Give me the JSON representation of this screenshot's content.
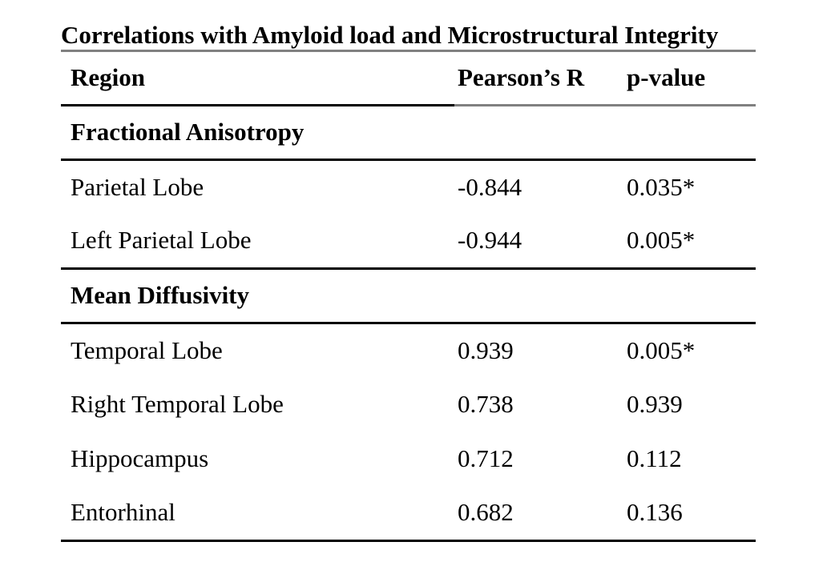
{
  "table": {
    "title": "Correlations with Amyloid load and Microstructural Integrity",
    "columns": [
      "Region",
      "Pearson’s R",
      "p-value"
    ],
    "sections": [
      {
        "name": "Fractional Anisotropy",
        "rows": [
          {
            "region": "Parietal Lobe",
            "pearsons_r": "-0.844",
            "p_value": "0.035*"
          },
          {
            "region": "Left Parietal Lobe",
            "pearsons_r": "-0.944",
            "p_value": "0.005*"
          }
        ]
      },
      {
        "name": "Mean Diffusivity",
        "rows": [
          {
            "region": "Temporal Lobe",
            "pearsons_r": "0.939",
            "p_value": "0.005*"
          },
          {
            "region": "Right Temporal Lobe",
            "pearsons_r": "0.738",
            "p_value": "0.939"
          },
          {
            "region": "Hippocampus",
            "pearsons_r": "0.712",
            "p_value": "0.112"
          },
          {
            "region": "Entorhinal",
            "pearsons_r": "0.682",
            "p_value": "0.136"
          }
        ]
      }
    ],
    "significance_marker": "*"
  },
  "colors": {
    "text": "#000000",
    "rule_black": "#000000",
    "rule_gray": "#808080",
    "background": "#ffffff"
  }
}
